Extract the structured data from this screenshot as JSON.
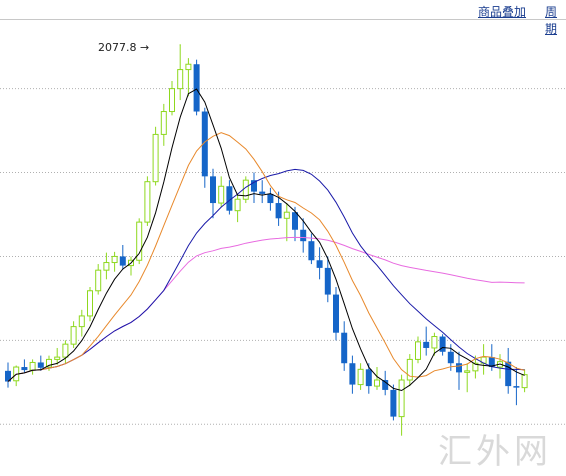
{
  "header": {
    "overlay_link": "商品叠加",
    "period_link": "周期"
  },
  "watermark": "汇外网",
  "chart_data": {
    "type": "candlestick",
    "peak_label": "2077.8 →",
    "peak_value": 2077.8,
    "ylim": [
      1520,
      2110
    ],
    "gridlines": [
      2020,
      1910,
      1800,
      1690,
      1580
    ],
    "grid": "dashed-horizontal",
    "colors": {
      "up": "#8ed81e",
      "down": "#1565c8",
      "ma5": "#000000",
      "ma10": "#e8892c",
      "ma20": "#1a1aa8",
      "ma60": "#e86be0"
    },
    "candles": [
      [
        1650,
        1661,
        1628,
        1636
      ],
      [
        1637,
        1657,
        1630,
        1655
      ],
      [
        1655,
        1665,
        1648,
        1651
      ],
      [
        1651,
        1665,
        1645,
        1661
      ],
      [
        1661,
        1670,
        1650,
        1654
      ],
      [
        1655,
        1670,
        1650,
        1665
      ],
      [
        1665,
        1680,
        1658,
        1668
      ],
      [
        1668,
        1690,
        1660,
        1685
      ],
      [
        1685,
        1715,
        1680,
        1708
      ],
      [
        1708,
        1730,
        1695,
        1722
      ],
      [
        1722,
        1760,
        1715,
        1755
      ],
      [
        1755,
        1790,
        1750,
        1782
      ],
      [
        1782,
        1805,
        1770,
        1792
      ],
      [
        1792,
        1806,
        1780,
        1800
      ],
      [
        1800,
        1815,
        1783,
        1788
      ],
      [
        1788,
        1800,
        1775,
        1795
      ],
      [
        1795,
        1850,
        1790,
        1845
      ],
      [
        1845,
        1905,
        1840,
        1898
      ],
      [
        1898,
        1970,
        1893,
        1960
      ],
      [
        1960,
        2000,
        1945,
        1990
      ],
      [
        1990,
        2030,
        1985,
        2020
      ],
      [
        2020,
        2078,
        2005,
        2045
      ],
      [
        2045,
        2060,
        2010,
        2052
      ],
      [
        2052,
        2058,
        1985,
        1990
      ],
      [
        1990,
        1995,
        1890,
        1905
      ],
      [
        1905,
        1915,
        1850,
        1870
      ],
      [
        1870,
        1905,
        1865,
        1892
      ],
      [
        1892,
        1900,
        1855,
        1860
      ],
      [
        1860,
        1880,
        1845,
        1875
      ],
      [
        1875,
        1905,
        1870,
        1900
      ],
      [
        1900,
        1910,
        1870,
        1885
      ],
      [
        1885,
        1900,
        1870,
        1882
      ],
      [
        1882,
        1890,
        1860,
        1870
      ],
      [
        1870,
        1885,
        1840,
        1850
      ],
      [
        1850,
        1870,
        1820,
        1858
      ],
      [
        1858,
        1865,
        1820,
        1835
      ],
      [
        1835,
        1850,
        1805,
        1820
      ],
      [
        1820,
        1830,
        1790,
        1795
      ],
      [
        1795,
        1812,
        1770,
        1785
      ],
      [
        1785,
        1800,
        1740,
        1750
      ],
      [
        1750,
        1760,
        1690,
        1700
      ],
      [
        1700,
        1715,
        1650,
        1660
      ],
      [
        1660,
        1670,
        1620,
        1632
      ],
      [
        1632,
        1660,
        1625,
        1652
      ],
      [
        1652,
        1660,
        1620,
        1630
      ],
      [
        1630,
        1655,
        1625,
        1638
      ],
      [
        1638,
        1650,
        1618,
        1625
      ],
      [
        1625,
        1632,
        1585,
        1590
      ],
      [
        1590,
        1645,
        1565,
        1638
      ],
      [
        1638,
        1672,
        1630,
        1665
      ],
      [
        1665,
        1695,
        1660,
        1688
      ],
      [
        1688,
        1708,
        1670,
        1680
      ],
      [
        1680,
        1700,
        1670,
        1695
      ],
      [
        1695,
        1698,
        1670,
        1675
      ],
      [
        1675,
        1685,
        1650,
        1660
      ],
      [
        1660,
        1675,
        1625,
        1648
      ],
      [
        1648,
        1660,
        1622,
        1650
      ],
      [
        1650,
        1670,
        1640,
        1660
      ],
      [
        1660,
        1685,
        1645,
        1668
      ],
      [
        1668,
        1685,
        1650,
        1655
      ],
      [
        1655,
        1672,
        1640,
        1662
      ],
      [
        1662,
        1680,
        1620,
        1630
      ],
      [
        1630,
        1655,
        1605,
        1628
      ],
      [
        1628,
        1652,
        1622,
        1645
      ]
    ]
  }
}
